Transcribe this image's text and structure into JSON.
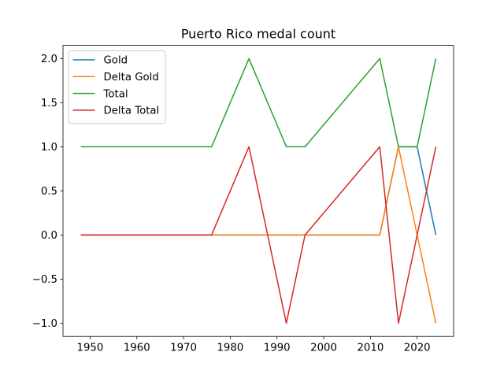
{
  "chart_data": {
    "type": "line",
    "title": "Puerto Rico medal count",
    "xlabel": "",
    "ylabel": "",
    "x": [
      1948,
      1952,
      1956,
      1960,
      1964,
      1968,
      1972,
      1976,
      1984,
      1992,
      1996,
      2012,
      2016,
      2020,
      2024
    ],
    "series": [
      {
        "name": "Gold",
        "color": "#1f77b4",
        "values": [
          0,
          0,
          0,
          0,
          0,
          0,
          0,
          0,
          0,
          0,
          0,
          0,
          1,
          1,
          0
        ]
      },
      {
        "name": "Delta Gold",
        "color": "#ff7f0e",
        "values": [
          0,
          0,
          0,
          0,
          0,
          0,
          0,
          0,
          0,
          0,
          0,
          0,
          1,
          0,
          -1
        ]
      },
      {
        "name": "Total",
        "color": "#2ca02c",
        "values": [
          1,
          1,
          1,
          1,
          1,
          1,
          1,
          1,
          2,
          1,
          1,
          2,
          1,
          1,
          2
        ]
      },
      {
        "name": "Delta Total",
        "color": "#d62728",
        "values": [
          0,
          0,
          0,
          0,
          0,
          0,
          0,
          0,
          1,
          -1,
          0,
          1,
          -1,
          0,
          1
        ]
      }
    ],
    "xlim": [
      1944.2,
      2027.8
    ],
    "ylim": [
      -1.15,
      2.15
    ],
    "xticks": [
      1950,
      1960,
      1970,
      1980,
      1990,
      2000,
      2010,
      2020
    ],
    "xtick_labels": [
      "1950",
      "1960",
      "1970",
      "1980",
      "1990",
      "2000",
      "2010",
      "2020"
    ],
    "yticks": [
      -1.0,
      -0.5,
      0.0,
      0.5,
      1.0,
      1.5,
      2.0
    ],
    "ytick_labels": [
      "−1.0",
      "−0.5",
      "0.0",
      "0.5",
      "1.0",
      "1.5",
      "2.0"
    ],
    "legend_position": "upper-left",
    "grid": false
  }
}
